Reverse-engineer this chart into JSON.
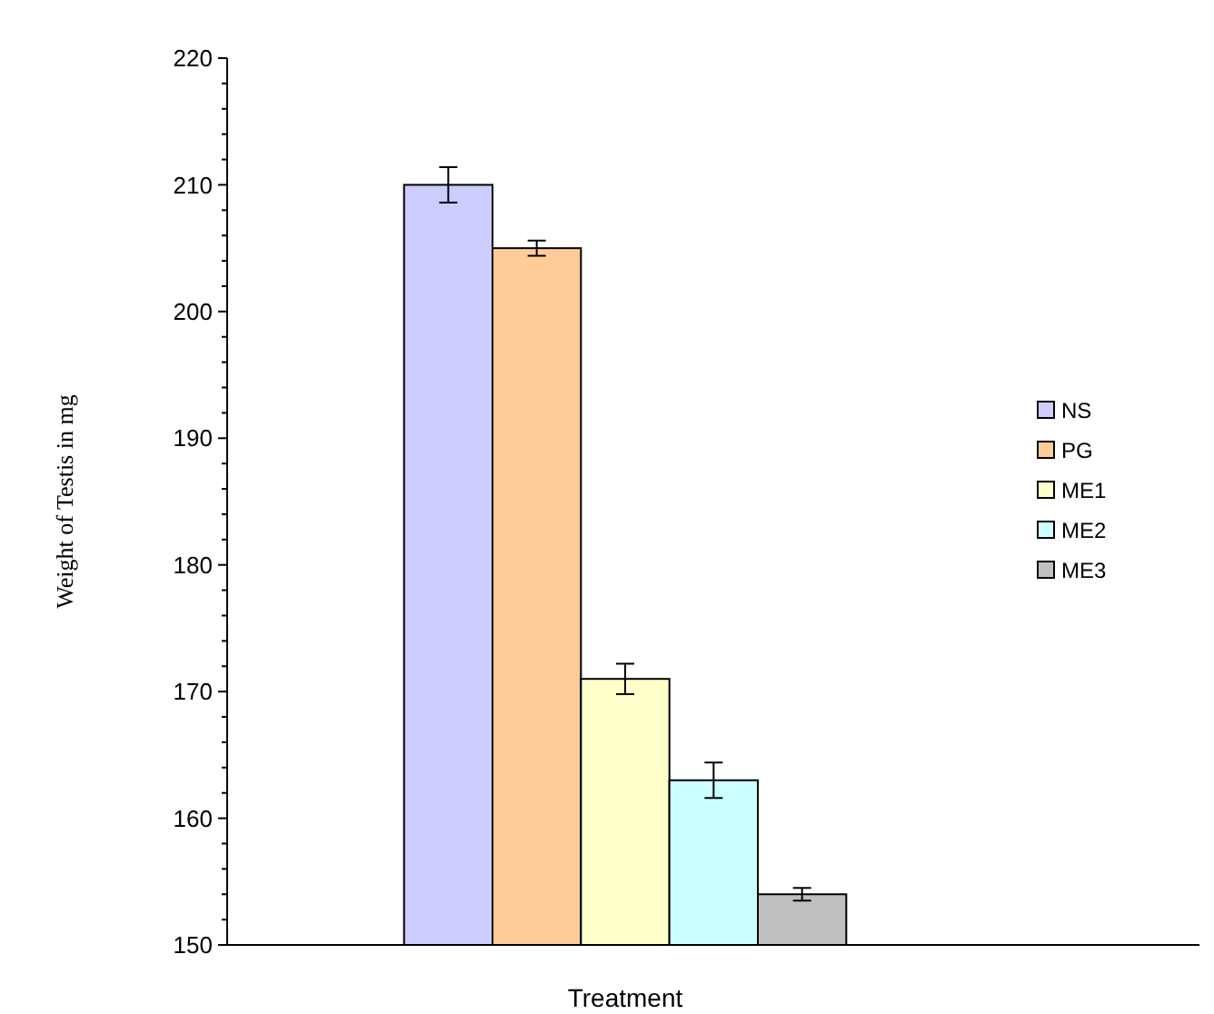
{
  "chart_data": {
    "type": "bar",
    "xlabel": "Treatment",
    "ylabel": "Weight  of Testis  in mg",
    "categories": [
      null
    ],
    "series": [
      {
        "name": "NS",
        "color": "#ccccff",
        "values": [
          210
        ],
        "errors": [
          1.4
        ]
      },
      {
        "name": "PG",
        "color": "#ffcc99",
        "values": [
          205
        ],
        "errors": [
          0.6
        ]
      },
      {
        "name": "ME1",
        "color": "#ffffcc",
        "values": [
          171
        ],
        "errors": [
          1.2
        ]
      },
      {
        "name": "ME2",
        "color": "#ccffff",
        "values": [
          163
        ],
        "errors": [
          1.4
        ]
      },
      {
        "name": "ME3",
        "color": "#c0c0c0",
        "values": [
          154
        ],
        "errors": [
          0.5
        ]
      }
    ],
    "ylim": [
      150,
      220
    ],
    "yticks": [
      150,
      {
        "value": 152,
        "label": null
      },
      {
        "value": 154,
        "label": null
      },
      {
        "value": 156,
        "label": null
      },
      {
        "value": 158,
        "label": null
      },
      160,
      {
        "value": 162,
        "label": null
      },
      {
        "value": 164,
        "label": null
      },
      {
        "value": 166,
        "label": null
      },
      {
        "value": 168,
        "label": null
      },
      170,
      {
        "value": 172,
        "label": null
      },
      {
        "value": 174,
        "label": null
      },
      {
        "value": 176,
        "label": null
      },
      {
        "value": 178,
        "label": null
      },
      180,
      {
        "value": 182,
        "label": null
      },
      {
        "value": 184,
        "label": null
      },
      {
        "value": 186,
        "label": null
      },
      {
        "value": 188,
        "label": null
      },
      190,
      {
        "value": 192,
        "label": null
      },
      {
        "value": 194,
        "label": null
      },
      {
        "value": 196,
        "label": null
      },
      {
        "value": 198,
        "label": null
      },
      200,
      {
        "value": 202,
        "label": null
      },
      {
        "value": 204,
        "label": null
      },
      {
        "value": 206,
        "label": null
      },
      {
        "value": 208,
        "label": null
      },
      210,
      {
        "value": 212,
        "label": null
      },
      {
        "value": 214,
        "label": null
      },
      {
        "value": 216,
        "label": null
      },
      {
        "value": 218,
        "label": null
      },
      220
    ],
    "grid": false,
    "legend": "right"
  }
}
